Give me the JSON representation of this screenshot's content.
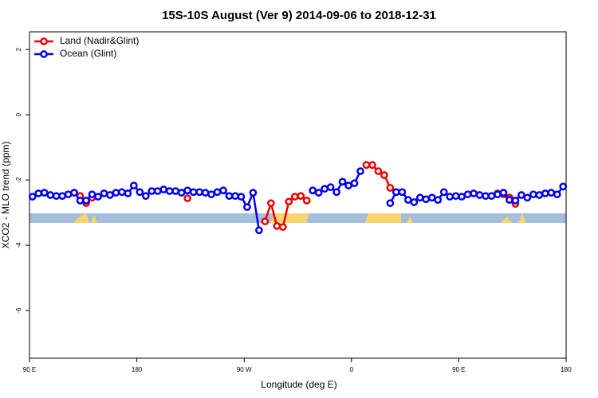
{
  "chart_data": {
    "type": "line",
    "title": "15S-10S August (Ver 9)   2014-09-06 to 2018-12-31",
    "x_label": "Longitude (deg E)",
    "y_label": "XCO2 - MLO trend (ppm)",
    "x": [
      92.5,
      97.5,
      102.5,
      107.5,
      112.5,
      117.5,
      122.5,
      127.5,
      132.5,
      137.5,
      142.5,
      147.5,
      152.5,
      157.5,
      162.5,
      167.5,
      172.5,
      177.5,
      182.5,
      187.5,
      192.5,
      197.5,
      202.5,
      207.5,
      212.5,
      217.5,
      222.5,
      227.5,
      232.5,
      237.5,
      242.5,
      247.5,
      252.5,
      257.5,
      262.5,
      267.5,
      272.5,
      277.5,
      282.5,
      287.5,
      292.5,
      297.5,
      302.5,
      307.5,
      312.5,
      317.5,
      322.5,
      327.5,
      332.5,
      337.5,
      342.5,
      347.5,
      352.5,
      357.5,
      362.5,
      367.5,
      372.5,
      377.5,
      382.5,
      387.5,
      392.5,
      397.5,
      402.5,
      407.5,
      412.5,
      417.5,
      422.5,
      427.5,
      432.5,
      437.5,
      442.5,
      447.5,
      452.5,
      457.5,
      462.5,
      467.5,
      472.5,
      477.5,
      482.5,
      487.5,
      492.5,
      497.5,
      502.5,
      507.5,
      512.5,
      517.5,
      522.5,
      527.5,
      532.5,
      537.5
    ],
    "series": [
      {
        "name": "Land (Nadir&Glint)",
        "color": "#ee0000",
        "values": [
          null,
          null,
          null,
          null,
          null,
          null,
          null,
          -2.39,
          -2.49,
          -2.71,
          -2.54,
          null,
          null,
          null,
          null,
          null,
          null,
          null,
          null,
          null,
          null,
          null,
          null,
          null,
          null,
          null,
          -2.56,
          null,
          null,
          null,
          null,
          null,
          null,
          null,
          null,
          null,
          null,
          null,
          null,
          -3.27,
          -2.71,
          -3.41,
          -3.44,
          -2.66,
          -2.51,
          -2.49,
          -2.63,
          null,
          null,
          null,
          null,
          null,
          null,
          null,
          null,
          null,
          -1.54,
          -1.54,
          -1.73,
          -1.85,
          -2.24,
          -2.37,
          null,
          null,
          null,
          null,
          null,
          null,
          null,
          null,
          null,
          null,
          null,
          null,
          null,
          null,
          null,
          null,
          -2.41,
          -2.44,
          -2.54,
          -2.73,
          null,
          null,
          null,
          null,
          null,
          null,
          null,
          null
        ]
      },
      {
        "name": "Ocean (Glint)",
        "color": "#0000ee",
        "values": [
          -2.51,
          -2.41,
          -2.39,
          -2.46,
          -2.49,
          -2.49,
          -2.44,
          -2.39,
          -2.63,
          -2.63,
          -2.44,
          -2.51,
          -2.41,
          -2.46,
          -2.39,
          -2.37,
          -2.41,
          -2.17,
          -2.37,
          -2.49,
          -2.34,
          -2.34,
          -2.29,
          -2.34,
          -2.34,
          -2.39,
          -2.32,
          -2.37,
          -2.37,
          -2.39,
          -2.44,
          -2.37,
          -2.32,
          -2.49,
          -2.49,
          -2.51,
          -2.83,
          -2.39,
          -3.54,
          null,
          null,
          null,
          null,
          null,
          null,
          null,
          null,
          -2.32,
          -2.39,
          -2.27,
          -2.22,
          -2.37,
          -2.05,
          -2.17,
          -2.1,
          -1.73,
          null,
          null,
          null,
          null,
          -2.71,
          -2.37,
          -2.37,
          -2.61,
          -2.68,
          -2.54,
          -2.59,
          -2.54,
          -2.61,
          -2.37,
          -2.51,
          -2.49,
          -2.51,
          -2.44,
          -2.41,
          -2.46,
          -2.49,
          -2.49,
          -2.44,
          -2.39,
          -2.61,
          -2.63,
          -2.46,
          -2.54,
          -2.44,
          -2.46,
          -2.41,
          -2.39,
          -2.44,
          -2.2
        ]
      }
    ],
    "xlim": [
      90,
      540
    ],
    "xticks": [
      {
        "value": 90,
        "label": "90 E"
      },
      180,
      {
        "value": 270,
        "label": "90 W"
      },
      {
        "value": 360,
        "label": "0"
      },
      {
        "value": 450,
        "label": "90 E"
      },
      {
        "value": 540,
        "label": "180"
      }
    ],
    "ylim": [
      -7.46,
      2.54
    ],
    "yticks": [
      -6,
      -4,
      -2,
      0,
      2
    ],
    "legend": "top-left"
  }
}
